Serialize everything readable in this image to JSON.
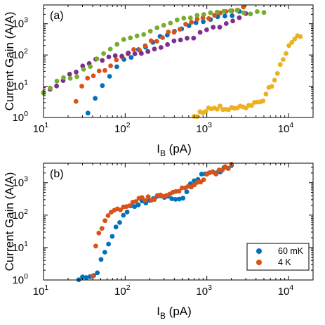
{
  "colors": {
    "blue": "#0072BD",
    "orange": "#D95319",
    "yellow": "#EDB120",
    "purple": "#7E2F8E",
    "green": "#77AC30"
  },
  "chart_data": [
    {
      "type": "scatter",
      "panel_label": "(a)",
      "xlabel": "I_B (pA)",
      "xlabel_main": "I",
      "xlabel_sub": "B",
      "xlabel_rest": " (pA)",
      "ylabel": "Current Gain (A/A)",
      "x_scale": "log",
      "y_scale": "log",
      "xlim": [
        10,
        20000
      ],
      "ylim": [
        1,
        4000
      ],
      "x_ticks": [
        10,
        100,
        1000,
        10000
      ],
      "y_ticks": [
        1,
        10,
        100,
        1000
      ],
      "tick_base": "10",
      "x_tick_exponents": [
        "1",
        "2",
        "3",
        "4"
      ],
      "y_tick_exponents": [
        "0",
        "1",
        "2",
        "3"
      ],
      "grid": false,
      "legend": "none",
      "series": [
        {
          "color": "blue",
          "curve": [
            [
              35,
              1.5
            ],
            [
              42,
              4
            ],
            [
              60,
              20
            ],
            [
              100,
              70
            ],
            [
              200,
              250
            ],
            [
              400,
              600
            ],
            [
              800,
              1100
            ],
            [
              1500,
              1700
            ],
            [
              2500,
              2300
            ]
          ]
        },
        {
          "color": "orange",
          "curve": [
            [
              25,
              3
            ],
            [
              28,
              10
            ],
            [
              35,
              20
            ],
            [
              60,
              40
            ],
            [
              100,
              90
            ],
            [
              200,
              250
            ],
            [
              400,
              600
            ],
            [
              800,
              1300
            ],
            [
              1500,
              2200
            ],
            [
              2800,
              3300
            ]
          ]
        },
        {
          "color": "yellow",
          "curve": [
            [
              700,
              1.1
            ],
            [
              1000,
              1.9
            ],
            [
              3000,
              2.2
            ],
            [
              5000,
              4
            ],
            [
              7000,
              20
            ],
            [
              9000,
              100
            ],
            [
              11000,
              250
            ],
            [
              14000,
              450
            ]
          ]
        },
        {
          "color": "purple",
          "curve": [
            [
              10,
              6
            ],
            [
              20,
              20
            ],
            [
              40,
              60
            ],
            [
              80,
              100
            ],
            [
              200,
              130
            ],
            [
              400,
              250
            ],
            [
              700,
              400
            ],
            [
              1000,
              600
            ],
            [
              2000,
              1200
            ],
            [
              3000,
              2500
            ]
          ]
        },
        {
          "color": "green",
          "curve": [
            [
              10,
              7
            ],
            [
              15,
              15
            ],
            [
              25,
              20
            ],
            [
              40,
              50
            ],
            [
              80,
              250
            ],
            [
              200,
              600
            ],
            [
              400,
              1200
            ],
            [
              700,
              1800
            ],
            [
              1200,
              2200
            ],
            [
              2500,
              2500
            ],
            [
              5000,
              2200
            ]
          ]
        }
      ]
    },
    {
      "type": "scatter",
      "panel_label": "(b)",
      "xlabel": "I_B (pA)",
      "xlabel_main": "I",
      "xlabel_sub": "B",
      "xlabel_rest": " (pA)",
      "ylabel": "Current Gain (A/A)",
      "x_scale": "log",
      "y_scale": "log",
      "xlim": [
        10,
        20000
      ],
      "ylim": [
        1,
        4000
      ],
      "x_ticks": [
        10,
        100,
        1000,
        10000
      ],
      "y_ticks": [
        1,
        10,
        100,
        1000
      ],
      "tick_base": "10",
      "x_tick_exponents": [
        "1",
        "2",
        "3",
        "4"
      ],
      "y_tick_exponents": [
        "0",
        "1",
        "2",
        "3"
      ],
      "grid": false,
      "legend": "bottom-right",
      "series": [
        {
          "name": "60 mK",
          "color": "blue",
          "curve": [
            [
              27,
              1.05
            ],
            [
              40,
              1.2
            ],
            [
              45,
              1.6
            ],
            [
              55,
              7
            ],
            [
              70,
              25
            ],
            [
              90,
              70
            ],
            [
              120,
              200
            ],
            [
              200,
              300
            ],
            [
              350,
              400
            ],
            [
              500,
              250
            ],
            [
              600,
              900
            ],
            [
              1000,
              2000
            ],
            [
              2000,
              3000
            ]
          ]
        },
        {
          "name": "4 K",
          "color": "orange",
          "curve": [
            [
              40,
              1.2
            ],
            [
              45,
              20
            ],
            [
              55,
              60
            ],
            [
              70,
              120
            ],
            [
              100,
              200
            ],
            [
              150,
              300
            ],
            [
              250,
              350
            ],
            [
              400,
              500
            ],
            [
              700,
              900
            ],
            [
              1000,
              1600
            ],
            [
              1500,
              2500
            ],
            [
              2000,
              3200
            ]
          ]
        }
      ]
    }
  ]
}
